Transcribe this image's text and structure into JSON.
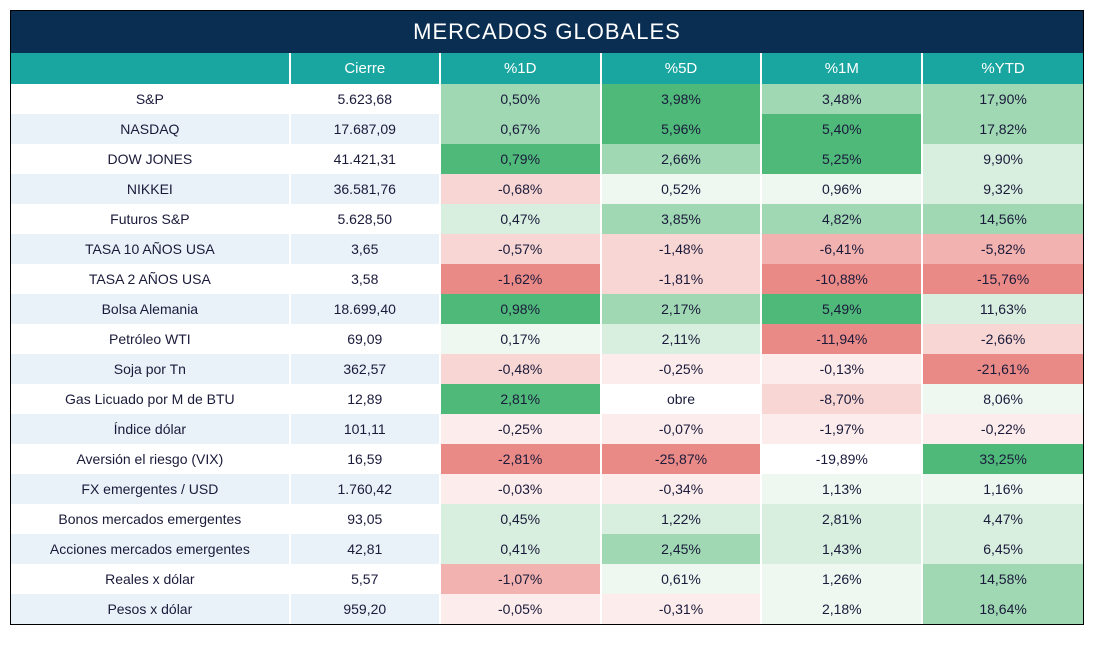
{
  "title": "MERCADOS GLOBALES",
  "headers": [
    "",
    "Cierre",
    "%1D",
    "%5D",
    "%1M",
    "%YTD"
  ],
  "style": {
    "title_bg": "#0a2e52",
    "title_color": "#ffffff",
    "title_fontsize": 22,
    "header_bg": "#1aa6a0",
    "header_color": "#ffffff",
    "header_fontsize": 15,
    "row_bg": "#ffffff",
    "row_alt_bg": "#eaf2f9",
    "cell_text_color": "#1a1a3a",
    "cell_fontsize": 14,
    "border_color": "#000000",
    "heat_green_strong": "#4fb97a",
    "heat_green_mid": "#9fd8b3",
    "heat_green_light": "#d8efdf",
    "heat_green_faint": "#eef8f1",
    "heat_red_strong": "#ea8a87",
    "heat_red_mid": "#f2b2af",
    "heat_red_light": "#f8d6d4",
    "heat_red_faint": "#fceceb",
    "heat_neutral": "#ffffff",
    "column_widths_pct": [
      26,
      14,
      15,
      15,
      15,
      15
    ]
  },
  "rows": [
    {
      "name": "S&P",
      "close": "5.623,68",
      "cells": [
        {
          "v": "0,50%",
          "bg": "#9fd8b3"
        },
        {
          "v": "3,98%",
          "bg": "#4fb97a"
        },
        {
          "v": "3,48%",
          "bg": "#9fd8b3"
        },
        {
          "v": "17,90%",
          "bg": "#9fd8b3"
        }
      ]
    },
    {
      "name": "NASDAQ",
      "close": "17.687,09",
      "cells": [
        {
          "v": "0,67%",
          "bg": "#9fd8b3"
        },
        {
          "v": "5,96%",
          "bg": "#4fb97a"
        },
        {
          "v": "5,40%",
          "bg": "#4fb97a"
        },
        {
          "v": "17,82%",
          "bg": "#9fd8b3"
        }
      ]
    },
    {
      "name": "DOW JONES",
      "close": "41.421,31",
      "cells": [
        {
          "v": "0,79%",
          "bg": "#4fb97a"
        },
        {
          "v": "2,66%",
          "bg": "#9fd8b3"
        },
        {
          "v": "5,25%",
          "bg": "#4fb97a"
        },
        {
          "v": "9,90%",
          "bg": "#d8efdf"
        }
      ]
    },
    {
      "name": "NIKKEI",
      "close": "36.581,76",
      "cells": [
        {
          "v": "-0,68%",
          "bg": "#f8d6d4"
        },
        {
          "v": "0,52%",
          "bg": "#eef8f1"
        },
        {
          "v": "0,96%",
          "bg": "#eef8f1"
        },
        {
          "v": "9,32%",
          "bg": "#d8efdf"
        }
      ]
    },
    {
      "name": "Futuros S&P",
      "close": "5.628,50",
      "cells": [
        {
          "v": "0,47%",
          "bg": "#d8efdf"
        },
        {
          "v": "3,85%",
          "bg": "#9fd8b3"
        },
        {
          "v": "4,82%",
          "bg": "#9fd8b3"
        },
        {
          "v": "14,56%",
          "bg": "#9fd8b3"
        }
      ]
    },
    {
      "name": "TASA 10 AÑOS USA",
      "close": "3,65",
      "cells": [
        {
          "v": "-0,57%",
          "bg": "#f8d6d4"
        },
        {
          "v": "-1,48%",
          "bg": "#f8d6d4"
        },
        {
          "v": "-6,41%",
          "bg": "#f2b2af"
        },
        {
          "v": "-5,82%",
          "bg": "#f2b2af"
        }
      ]
    },
    {
      "name": "TASA 2 AÑOS USA",
      "close": "3,58",
      "cells": [
        {
          "v": "-1,62%",
          "bg": "#ea8a87"
        },
        {
          "v": "-1,81%",
          "bg": "#f8d6d4"
        },
        {
          "v": "-10,88%",
          "bg": "#ea8a87"
        },
        {
          "v": "-15,76%",
          "bg": "#ea8a87"
        }
      ]
    },
    {
      "name": "Bolsa Alemania",
      "close": "18.699,40",
      "cells": [
        {
          "v": "0,98%",
          "bg": "#4fb97a"
        },
        {
          "v": "2,17%",
          "bg": "#9fd8b3"
        },
        {
          "v": "5,49%",
          "bg": "#4fb97a"
        },
        {
          "v": "11,63%",
          "bg": "#d8efdf"
        }
      ]
    },
    {
      "name": "Petróleo WTI",
      "close": "69,09",
      "cells": [
        {
          "v": "0,17%",
          "bg": "#eef8f1"
        },
        {
          "v": "2,11%",
          "bg": "#d8efdf"
        },
        {
          "v": "-11,94%",
          "bg": "#ea8a87"
        },
        {
          "v": "-2,66%",
          "bg": "#f8d6d4"
        }
      ]
    },
    {
      "name": "Soja por Tn",
      "close": "362,57",
      "cells": [
        {
          "v": "-0,48%",
          "bg": "#f8d6d4"
        },
        {
          "v": "-0,25%",
          "bg": "#fceceb"
        },
        {
          "v": "-0,13%",
          "bg": "#fceceb"
        },
        {
          "v": "-21,61%",
          "bg": "#ea8a87"
        }
      ]
    },
    {
      "name": "Gas Licuado por M de BTU",
      "close": "12,89",
      "cells": [
        {
          "v": "2,81%",
          "bg": "#4fb97a"
        },
        {
          "v": "obre",
          "bg": "#ffffff"
        },
        {
          "v": "-8,70%",
          "bg": "#f8d6d4"
        },
        {
          "v": "8,06%",
          "bg": "#eef8f1"
        }
      ]
    },
    {
      "name": "Índice dólar",
      "close": "101,11",
      "cells": [
        {
          "v": "-0,25%",
          "bg": "#fceceb"
        },
        {
          "v": "-0,07%",
          "bg": "#fceceb"
        },
        {
          "v": "-1,97%",
          "bg": "#fceceb"
        },
        {
          "v": "-0,22%",
          "bg": "#fceceb"
        }
      ]
    },
    {
      "name": "Aversión el riesgo (VIX)",
      "close": "16,59",
      "cells": [
        {
          "v": "-2,81%",
          "bg": "#ea8a87"
        },
        {
          "v": "-25,87%",
          "bg": "#ea8a87"
        },
        {
          "v": "-19,89%",
          "bg": "#ffffff"
        },
        {
          "v": "33,25%",
          "bg": "#4fb97a"
        }
      ]
    },
    {
      "name": "FX emergentes / USD",
      "close": "1.760,42",
      "cells": [
        {
          "v": "-0,03%",
          "bg": "#fceceb"
        },
        {
          "v": "-0,34%",
          "bg": "#fceceb"
        },
        {
          "v": "1,13%",
          "bg": "#eef8f1"
        },
        {
          "v": "1,16%",
          "bg": "#eef8f1"
        }
      ]
    },
    {
      "name": "Bonos mercados emergentes",
      "close": "93,05",
      "cells": [
        {
          "v": "0,45%",
          "bg": "#d8efdf"
        },
        {
          "v": "1,22%",
          "bg": "#d8efdf"
        },
        {
          "v": "2,81%",
          "bg": "#d8efdf"
        },
        {
          "v": "4,47%",
          "bg": "#d8efdf"
        }
      ]
    },
    {
      "name": "Acciones mercados emergentes",
      "close": "42,81",
      "cells": [
        {
          "v": "0,41%",
          "bg": "#d8efdf"
        },
        {
          "v": "2,45%",
          "bg": "#9fd8b3"
        },
        {
          "v": "1,43%",
          "bg": "#d8efdf"
        },
        {
          "v": "6,45%",
          "bg": "#d8efdf"
        }
      ]
    },
    {
      "name": "Reales x dólar",
      "close": "5,57",
      "cells": [
        {
          "v": "-1,07%",
          "bg": "#f2b2af"
        },
        {
          "v": "0,61%",
          "bg": "#eef8f1"
        },
        {
          "v": "1,26%",
          "bg": "#eef8f1"
        },
        {
          "v": "14,58%",
          "bg": "#9fd8b3"
        }
      ]
    },
    {
      "name": "Pesos x dólar",
      "close": "959,20",
      "cells": [
        {
          "v": "-0,05%",
          "bg": "#fceceb"
        },
        {
          "v": "-0,31%",
          "bg": "#fceceb"
        },
        {
          "v": "2,18%",
          "bg": "#eef8f1"
        },
        {
          "v": "18,64%",
          "bg": "#9fd8b3"
        }
      ]
    }
  ]
}
